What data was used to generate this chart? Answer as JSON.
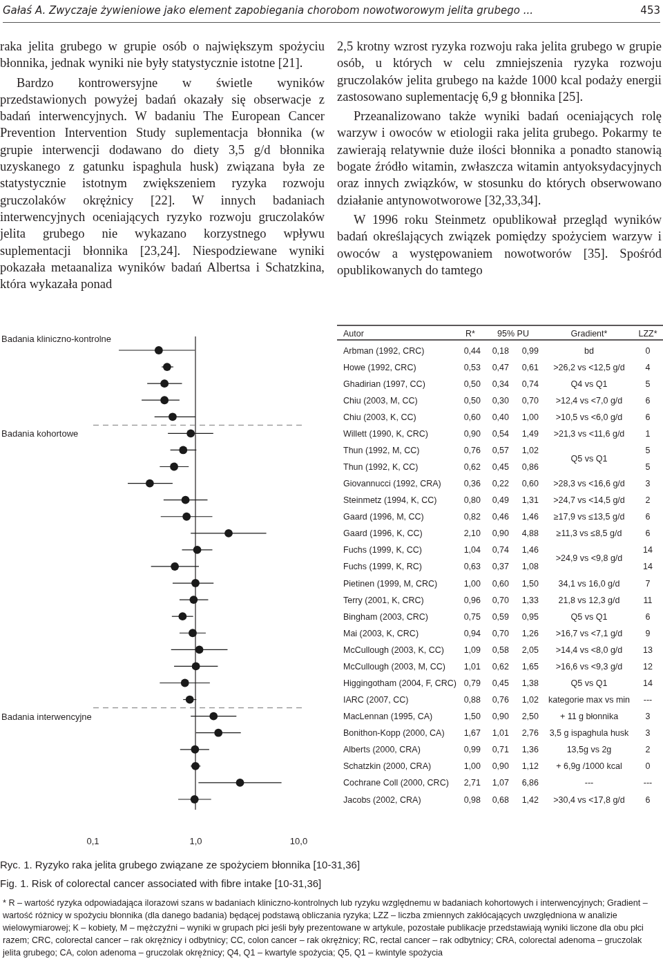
{
  "chart_data": {
    "type": "scatter",
    "orientation": "horizontal",
    "title": "Ryc. 1. Ryzyko raka jelita grubego związane ze spożyciem błonnika [10-31,36]",
    "subtitle": "Fig. 1. Risk of colorectal cancer associated with fibre intake [10-31,36]",
    "categories": [
      "Arbman (1992, CRC)",
      "Howe (1992, CRC)",
      "Ghadirian (1997, CC)",
      "Chiu (2003, M, CC)",
      "Chiu (2003, K, CC)",
      "Willett (1990, K, CRC)",
      "Thun (1992, M, CC)",
      "Thun (1992, K, CC)",
      "Giovannucci (1992, CRA)",
      "Steinmetz (1994, K, CC)",
      "Gaard (1996, M, CC)",
      "Gaard (1996, K, CC)",
      "Fuchs (1999, K, CC)",
      "Fuchs (1999, K, RC)",
      "Pietinen (1999, M, CRC)",
      "Terry (2001, K, CRC)",
      "Bingham (2003, CRC)",
      "Mai (2003, K, CRC)",
      "McCullough (2003, K, CC)",
      "McCullough (2003, M, CC)",
      "Higgingotham (2004, F, CRC)",
      "IARC (2007, CC)",
      "MacLennan (1995, CA)",
      "Bonithon-Kopp (2000, CA)",
      "Alberts (2000, CRA)",
      "Schatzkin (2000, CRA)",
      "Cochrane Coll (2000, CRC)",
      "Jacobs (2002, CRA)"
    ],
    "values": [
      0.44,
      0.53,
      0.5,
      0.5,
      0.6,
      0.9,
      0.76,
      0.62,
      0.36,
      0.8,
      0.82,
      2.1,
      1.04,
      0.63,
      1.0,
      0.96,
      0.75,
      0.94,
      1.09,
      1.01,
      0.79,
      0.88,
      1.5,
      1.67,
      0.99,
      1.0,
      2.71,
      0.98
    ],
    "value_labels": [
      "0,44",
      "0,53",
      "0,50",
      "0,50",
      "0,60",
      "0,90",
      "0,76",
      "0,62",
      "0,36",
      "0,80",
      "0,82",
      "2,10",
      "1,04",
      "0,63",
      "1,00",
      "0,96",
      "0,75",
      "0,94",
      "1,09",
      "1,01",
      "0,79",
      "0,88",
      "1,50",
      "1,67",
      "0,99",
      "1,00",
      "2,71",
      "0,98"
    ],
    "errors": [
      [
        0.18,
        0.99
      ],
      [
        0.47,
        0.61
      ],
      [
        0.34,
        0.74
      ],
      [
        0.3,
        0.7
      ],
      [
        0.4,
        1.0
      ],
      [
        0.54,
        1.49
      ],
      [
        0.57,
        1.02
      ],
      [
        0.45,
        0.86
      ],
      [
        0.22,
        0.6
      ],
      [
        0.49,
        1.31
      ],
      [
        0.46,
        1.46
      ],
      [
        0.9,
        4.88
      ],
      [
        0.74,
        1.46
      ],
      [
        0.37,
        1.08
      ],
      [
        0.6,
        1.5
      ],
      [
        0.7,
        1.33
      ],
      [
        0.59,
        0.95
      ],
      [
        0.7,
        1.26
      ],
      [
        0.58,
        2.05
      ],
      [
        0.62,
        1.65
      ],
      [
        0.45,
        1.38
      ],
      [
        0.76,
        1.02
      ],
      [
        0.9,
        2.5
      ],
      [
        1.01,
        2.76
      ],
      [
        0.71,
        1.36
      ],
      [
        0.9,
        1.12
      ],
      [
        1.07,
        6.86
      ],
      [
        0.68,
        1.42
      ]
    ],
    "color": "#1a1a1a",
    "marker": "circle",
    "log": "x",
    "xlim": [
      0.1,
      10
    ],
    "xticks": [
      {
        "value": 0.1,
        "label": "0,1"
      },
      {
        "value": 1,
        "label": "1,0"
      },
      {
        "value": 10,
        "label": "10,0"
      }
    ],
    "ref_lines": [
      {
        "axis": "x",
        "value": 1,
        "line_style": "solid"
      }
    ],
    "annotations": [
      "Gałaś A.   Zwyczaje żywieniowe jako element zapobiegania chorobom nowotworowym jelita grubego ...",
      "453",
      "raka jelita grubego w grupie osób o największym spożyciu błonnika, jednak wyniki nie były statystycznie istotne [21].",
      "Bardzo kontrowersyjne w świetle wyników przedstawionych powyżej badań okazały się obserwacje z badań interwencyjnych. W badaniu The European Cancer Prevention Intervention Study suplementacja błonnika (w grupie interwencji dodawano do diety 3,5 g/d błonnika uzyskanego z gatunku ispaghula husk) związana była ze statystycznie istotnym zwiększeniem ryzyka rozwoju gruczolaków okrężnicy [22]. W innych badaniach interwencyjnych oceniających ryzyko rozwoju gruczolaków jelita grubego nie wykazano korzystnego wpływu suplementacji błonnika [23,24]. Niespodziewane wyniki pokazała metaanaliza wyników badań Albertsa i Schatzkina, która wykazała ponad",
      "2,5 krotny wzrost ryzyka rozwoju raka jelita grubego w grupie osób, u których w celu zmniejszenia ryzyka rozwoju gruczolaków jelita grubego na każde 1000 kcal podaży energii zastosowano suplementację 6,9 g błonnika [25].",
      "Przeanalizowano także wyniki badań oceniających rolę warzyw i owoców w etiologii raka jelita grubego. Pokarmy te zawierają relatywnie duże ilości błonnika a ponadto stanowią bogate źródło witamin, zwłaszcza witamin antyoksydacyjnych oraz innych związków, w stosunku do których obserwowano działanie antynowotworowe [32,33,34].",
      "W 1996 roku Steinmetz opublikował przegląd wyników badań określających związek pomiędzy spożyciem warzyw i owoców a występowaniem nowotworów [35]. Spośród opublikowanych do tamtego",
      "Autor",
      "R*",
      "95% PU",
      "Gradient*",
      "LZZ*",
      "* R – wartość ryzyka odpowiadająca ilorazowi szans w badaniach kliniczno-kontrolnych lub ryzyku względnemu w badaniach kohortowych i interwencyjnych; Gradient – wartość różnicy w spożyciu błonnika (dla danego badania) będącej podstawą obliczania ryzyka; LZZ – liczba zmiennych zakłócających uwzględniona w analizie wielowymiarowej; K – kobiety, M – mężczyźni – wyniki w grupach płci jeśli były prezentowane w artykule, pozostałe publikacje przedstawiają wyniki liczone dla obu płci razem; CRC, colorectal cancer – rak okrężnicy i odbytnicy; CC, colon cancer – rak okrężnicy; RC, rectal cancer – rak odbytnicy; CRA, colorectal adenoma – gruczolak jelita grubego; CA, colon adenoma – gruczolak okrężnicy; Q4, Q1 – kwartyle spożycia; Q5, Q1 – kwintyle spożycia",
      "Badania kliniczno-kontrolne",
      "Badania kohortowe",
      "Badania interwencyjne",
      "0,18",
      "0,47",
      "0,34",
      "0,30",
      "0,40",
      "0,54",
      "0,57",
      "0,45",
      "0,22",
      "0,49",
      "0,46",
      "0,90",
      "0,74",
      "0,37",
      "0,60",
      "0,70",
      "0,59",
      "0,70",
      "0,58",
      "0,62",
      "0,45",
      "0,76",
      "0,90",
      "1,01",
      "0,71",
      "0,90",
      "1,07",
      "0,68",
      "0,99",
      "0,61",
      "0,74",
      "0,70",
      "1,00",
      "1,49",
      "1,02",
      "0,86",
      "0,60",
      "1,31",
      "1,46",
      "4,88",
      "1,46",
      "1,08",
      "1,50",
      "1,33",
      "0,95",
      "1,26",
      "2,05",
      "1,65",
      "1,38",
      "1,02",
      "2,50",
      "2,76",
      "1,36",
      "1,12",
      "6,86",
      "1,42",
      "bd",
      ">26,2 vs <12,5 g/d",
      "Q4 vs Q1",
      ">12,4 vs <7,0 g/d",
      ">10,5 vs <6,0 g/d",
      ">21,3 vs <11,6 g/d",
      "Q5 vs Q1",
      ">28,3 vs <16,6 g/d",
      ">24,7 vs <14,5 g/d",
      "≥17,9 vs ≤13,5 g/d",
      "≥11,3 vs ≤8,5 g/d",
      ">24,9 vs <9,8 g/d",
      "34,1 vs 16,0 g/d",
      "21,8 vs 12,3 g/d",
      "Q5 vs Q1",
      ">16,7 vs <7,1 g/d",
      ">14,4 vs <8,0 g/d",
      ">16,6 vs <9,3 g/d",
      "Q5 vs Q1",
      "kategorie max vs min",
      "+ 11 g błonnika",
      "3,5 g ispaghula husk",
      "13,5g vs 2g",
      "+ 6,9g  /1000 kcal",
      "---",
      ">30,4 vs <17,8 g/d",
      "0",
      "4",
      "5",
      "6",
      "6",
      "1",
      "5",
      "5",
      "3",
      "2",
      "6",
      "6",
      "14",
      "14",
      "7",
      "11",
      "6",
      "9",
      "13",
      "12",
      "14",
      "---",
      "3",
      "3",
      "2",
      "0",
      "---",
      "6"
    ]
  }
}
